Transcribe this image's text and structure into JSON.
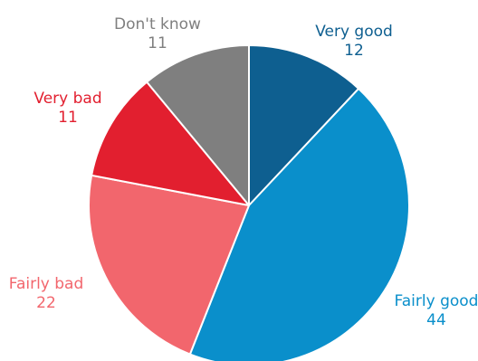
{
  "chart_data": {
    "type": "pie",
    "title": "",
    "start_angle_deg": 0,
    "direction": "clockwise",
    "slices": [
      {
        "label": "Very good",
        "value": 12,
        "color": "#0e5f90"
      },
      {
        "label": "Fairly good",
        "value": 44,
        "color": "#0a8fcb"
      },
      {
        "label": "Fairly bad",
        "value": 22,
        "color": "#f2666d"
      },
      {
        "label": "Very bad",
        "value": 11,
        "color": "#e21f2f"
      },
      {
        "label": "Don't know",
        "value": 11,
        "color": "#7f7f7f"
      }
    ]
  }
}
